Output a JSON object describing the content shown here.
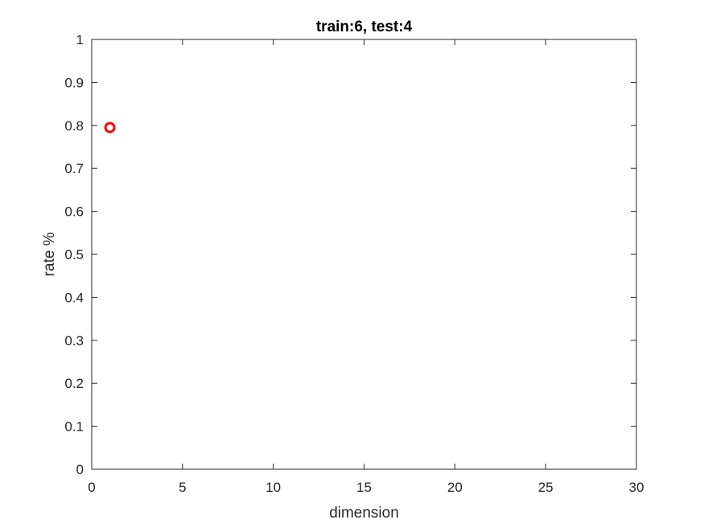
{
  "chart_data": {
    "type": "scatter",
    "title": "train:6, test:4",
    "xlabel": "dimension",
    "ylabel": "rate %",
    "xlim": [
      0,
      30
    ],
    "ylim": [
      0,
      1
    ],
    "xticks": [
      0,
      5,
      10,
      15,
      20,
      25,
      30
    ],
    "xtick_labels": [
      "0",
      "5",
      "10",
      "15",
      "20",
      "25",
      "30"
    ],
    "yticks": [
      0,
      0.1,
      0.2,
      0.3,
      0.4,
      0.5,
      0.6,
      0.7,
      0.8,
      0.9,
      1
    ],
    "ytick_labels": [
      "0",
      "0.1",
      "0.2",
      "0.3",
      "0.4",
      "0.5",
      "0.6",
      "0.7",
      "0.8",
      "0.9",
      "1"
    ],
    "grid": false,
    "series": [
      {
        "marker": "circle-open",
        "color": "#ff0000",
        "points": [
          {
            "x": 1,
            "y": 0.795
          }
        ]
      }
    ]
  }
}
